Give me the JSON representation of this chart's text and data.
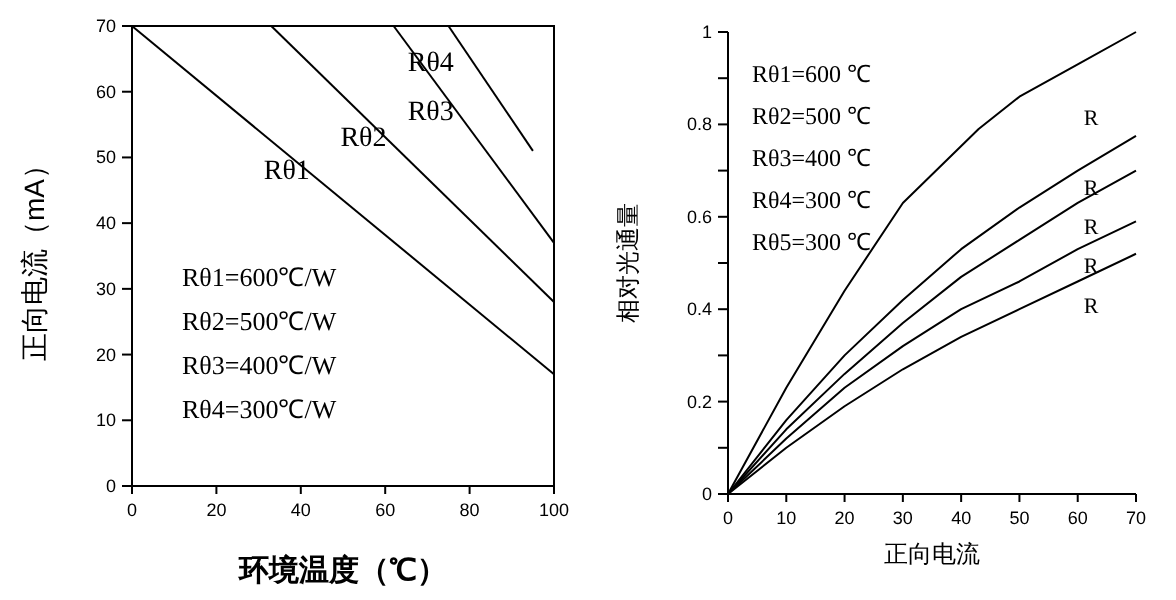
{
  "chart_data": [
    {
      "type": "line",
      "xlabel": "环境温度（℃）",
      "ylabel": "正向电流（mA）",
      "xlim": [
        0,
        100
      ],
      "ylim": [
        0,
        70
      ],
      "xticks": [
        0,
        20,
        40,
        60,
        80,
        100
      ],
      "yticks": [
        0,
        10,
        20,
        30,
        40,
        50,
        60,
        70
      ],
      "grid": false,
      "series": [
        {
          "name": "Rθ1",
          "color": "#000000",
          "x": [
            0,
            100
          ],
          "values": [
            70,
            17
          ]
        },
        {
          "name": "Rθ2",
          "color": "#000000",
          "x": [
            33,
            100
          ],
          "values": [
            70,
            28
          ]
        },
        {
          "name": "Rθ3",
          "color": "#000000",
          "x": [
            62,
            100
          ],
          "values": [
            70,
            37
          ]
        },
        {
          "name": "Rθ4",
          "color": "#000000",
          "x": [
            75,
            95
          ],
          "values": [
            70,
            51
          ]
        }
      ],
      "annotations": [
        "Rθ1=600℃/W",
        "Rθ2=500℃/W",
        "Rθ3=400℃/W",
        "Rθ4=300℃/W"
      ]
    },
    {
      "type": "line",
      "xlabel": "正向电流",
      "ylabel": "相对光通量",
      "xlim": [
        0,
        70
      ],
      "ylim": [
        0,
        1.0
      ],
      "xticks": [
        0,
        10,
        20,
        30,
        40,
        50,
        60,
        70
      ],
      "yticks": [
        0,
        {
          "value": 0.1,
          "label": null
        },
        0.2,
        {
          "value": 0.3,
          "label": null
        },
        0.4,
        {
          "value": 0.5,
          "label": null
        },
        0.6,
        {
          "value": 0.7,
          "label": null
        },
        0.8,
        {
          "value": 0.9,
          "label": null
        },
        1.0
      ],
      "grid": false,
      "series": [
        {
          "color": "#000000",
          "x": [
            0,
            10,
            20,
            30,
            43,
            50,
            60,
            70
          ],
          "values": [
            0,
            0.23,
            0.44,
            0.63,
            0.79,
            0.86,
            0.93,
            1.0
          ]
        },
        {
          "color": "#000000",
          "x": [
            0,
            10,
            20,
            30,
            40,
            50,
            60,
            70
          ],
          "values": [
            0,
            0.16,
            0.3,
            0.42,
            0.53,
            0.62,
            0.7,
            0.775
          ]
        },
        {
          "color": "#000000",
          "x": [
            0,
            10,
            20,
            30,
            40,
            50,
            60,
            70
          ],
          "values": [
            0,
            0.14,
            0.26,
            0.37,
            0.47,
            0.55,
            0.63,
            0.7
          ]
        },
        {
          "color": "#000000",
          "x": [
            0,
            10,
            20,
            30,
            40,
            50,
            60,
            70
          ],
          "values": [
            0,
            0.12,
            0.23,
            0.32,
            0.4,
            0.46,
            0.53,
            0.59
          ]
        },
        {
          "color": "#000000",
          "x": [
            0,
            10,
            20,
            30,
            40,
            50,
            60,
            70
          ],
          "values": [
            0,
            0.1,
            0.19,
            0.27,
            0.34,
            0.4,
            0.46,
            0.52
          ]
        }
      ],
      "annotations": [
        "Rθ1=600 ℃",
        "Rθ2=500 ℃",
        "Rθ3=400 ℃",
        "Rθ4=300 ℃",
        "Rθ5=300 ℃",
        "R",
        "R",
        "R",
        "R",
        "R"
      ]
    }
  ]
}
